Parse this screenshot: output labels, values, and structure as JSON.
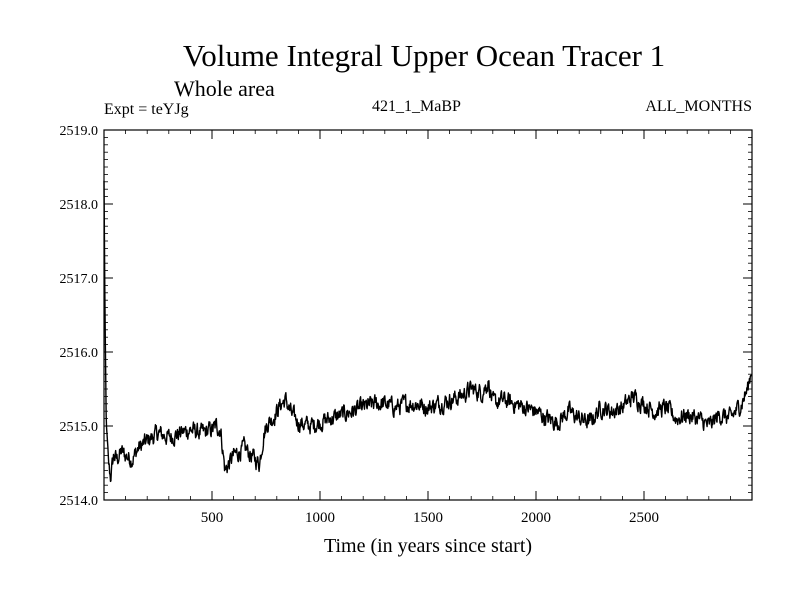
{
  "chart_data": {
    "type": "line",
    "title": "Volume Integral Upper Ocean Tracer 1",
    "subtitle": "Whole area",
    "experiment_label": "Expt = teYJg",
    "run_label": "421_1_MaBP",
    "period_label": "ALL_MONTHS",
    "xlabel": "Time (in years since start)",
    "ylabel": "",
    "xlim": [
      0,
      3000
    ],
    "ylim": [
      2514.0,
      2519.0
    ],
    "x_ticks": [
      500,
      1000,
      1500,
      2000,
      2500
    ],
    "y_ticks": [
      "2514.0",
      "2515.0",
      "2516.0",
      "2517.0",
      "2518.0",
      "2519.0"
    ],
    "grid": false,
    "series": [
      {
        "name": "Tracer 1",
        "x": [
          0,
          5,
          10,
          20,
          30,
          45,
          60,
          80,
          100,
          130,
          160,
          200,
          250,
          300,
          350,
          400,
          450,
          500,
          520,
          540,
          560,
          580,
          600,
          650,
          700,
          720,
          740,
          760,
          780,
          800,
          820,
          840,
          870,
          900,
          950,
          1000,
          1050,
          1100,
          1150,
          1200,
          1250,
          1300,
          1350,
          1400,
          1450,
          1500,
          1550,
          1600,
          1650,
          1700,
          1750,
          1780,
          1800,
          1850,
          1900,
          1950,
          2000,
          2050,
          2100,
          2150,
          2200,
          2250,
          2300,
          2350,
          2400,
          2450,
          2500,
          2550,
          2600,
          2650,
          2700,
          2750,
          2800,
          2850,
          2900,
          2950,
          2980,
          3000
        ],
        "values": [
          2518.3,
          2516.4,
          2515.1,
          2514.5,
          2514.3,
          2514.6,
          2514.55,
          2514.65,
          2514.6,
          2514.55,
          2514.7,
          2514.8,
          2514.9,
          2514.85,
          2514.9,
          2514.95,
          2514.9,
          2514.95,
          2515.0,
          2514.95,
          2514.4,
          2514.5,
          2514.6,
          2514.7,
          2514.55,
          2514.5,
          2514.9,
          2515.05,
          2515.1,
          2515.2,
          2515.3,
          2515.35,
          2515.15,
          2515.05,
          2515.0,
          2515.05,
          2515.1,
          2515.15,
          2515.2,
          2515.25,
          2515.3,
          2515.3,
          2515.25,
          2515.3,
          2515.3,
          2515.25,
          2515.3,
          2515.35,
          2515.4,
          2515.5,
          2515.45,
          2515.6,
          2515.3,
          2515.35,
          2515.3,
          2515.25,
          2515.2,
          2515.1,
          2515.05,
          2515.2,
          2515.1,
          2515.05,
          2515.25,
          2515.2,
          2515.25,
          2515.4,
          2515.3,
          2515.2,
          2515.25,
          2515.1,
          2515.15,
          2515.1,
          2515.0,
          2515.15,
          2515.1,
          2515.3,
          2515.5,
          2515.8
        ]
      }
    ]
  }
}
